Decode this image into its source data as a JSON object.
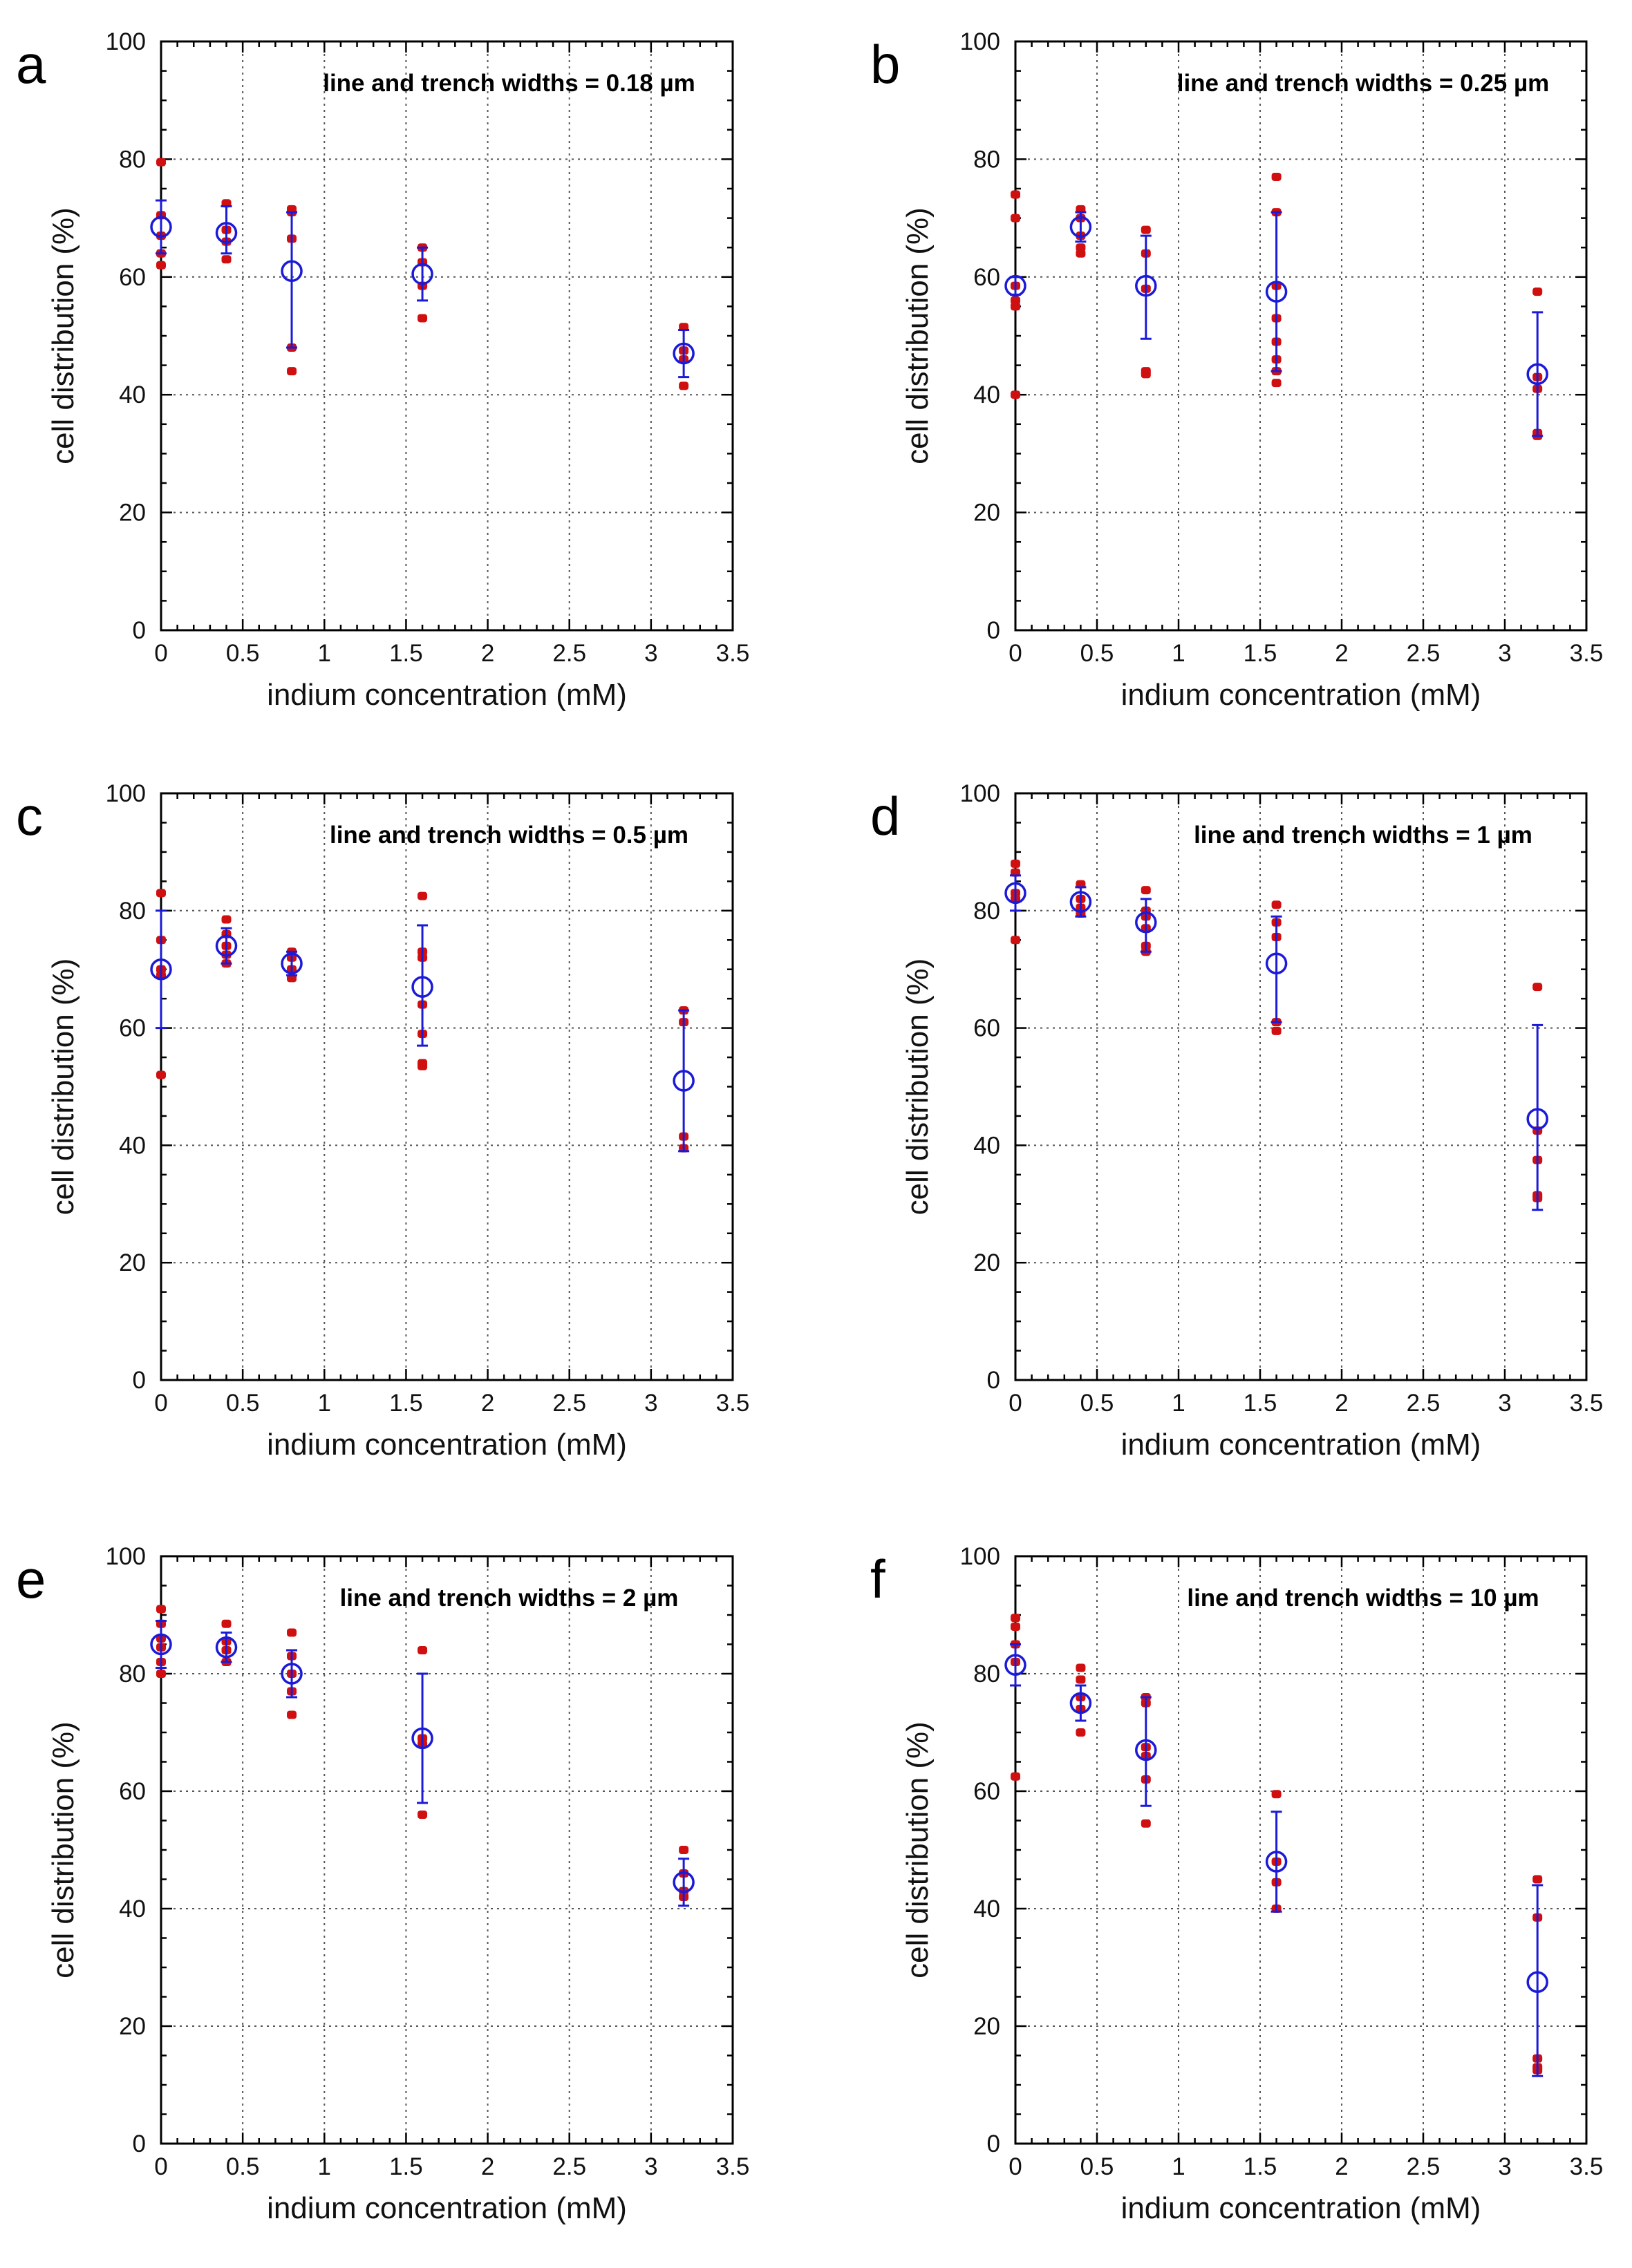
{
  "chart_data": [
    {
      "type": "scatter",
      "panel": "a",
      "annotation": "line and trench widths = 0.18 µm",
      "xlabel": "indium concentration (mM)",
      "ylabel": "cell distribution (%)",
      "xlim": [
        0,
        3.5
      ],
      "ylim": [
        0,
        100
      ],
      "xticks": [
        "0",
        "0.5",
        "1",
        "1.5",
        "2",
        "2.5",
        "3",
        "3.5"
      ],
      "yticks": [
        "0",
        "20",
        "40",
        "60",
        "80",
        "100"
      ],
      "grid": true,
      "series": [
        {
          "kind": "raw",
          "color": "#d01010",
          "points": [
            [
              0,
              79.5
            ],
            [
              0,
              70.5
            ],
            [
              0,
              67
            ],
            [
              0,
              64
            ],
            [
              0,
              62
            ],
            [
              0.4,
              72.5
            ],
            [
              0.4,
              68
            ],
            [
              0.4,
              66
            ],
            [
              0.4,
              63
            ],
            [
              0.8,
              71.5
            ],
            [
              0.8,
              71
            ],
            [
              0.8,
              66.5
            ],
            [
              0.8,
              48
            ],
            [
              0.8,
              44
            ],
            [
              1.6,
              65
            ],
            [
              1.6,
              62.5
            ],
            [
              1.6,
              58.5
            ],
            [
              1.6,
              53
            ],
            [
              3.2,
              51.5
            ],
            [
              3.2,
              47.5
            ],
            [
              3.2,
              46
            ],
            [
              3.2,
              41.5
            ]
          ]
        },
        {
          "kind": "mean",
          "color": "#1a1ad8",
          "points": [
            [
              0,
              68.5
            ],
            [
              0.4,
              67.5
            ],
            [
              0.8,
              61
            ],
            [
              1.6,
              60.5
            ],
            [
              3.2,
              47
            ]
          ],
          "error": [
            [
              64,
              73
            ],
            [
              64,
              72
            ],
            [
              48,
              71
            ],
            [
              56,
              65
            ],
            [
              43,
              51
            ]
          ]
        }
      ]
    },
    {
      "type": "scatter",
      "panel": "b",
      "annotation": "line and trench widths = 0.25 µm",
      "xlabel": "indium concentration (mM)",
      "ylabel": "cell distribution (%)",
      "xlim": [
        0,
        3.5
      ],
      "ylim": [
        0,
        100
      ],
      "xticks": [
        "0",
        "0.5",
        "1",
        "1.5",
        "2",
        "2.5",
        "3",
        "3.5"
      ],
      "yticks": [
        "0",
        "20",
        "40",
        "60",
        "80",
        "100"
      ],
      "grid": true,
      "series": [
        {
          "kind": "raw",
          "color": "#d01010",
          "points": [
            [
              0,
              74
            ],
            [
              0,
              70
            ],
            [
              0,
              58.5
            ],
            [
              0,
              56
            ],
            [
              0,
              55
            ],
            [
              0,
              40
            ],
            [
              0.4,
              71.5
            ],
            [
              0.4,
              70
            ],
            [
              0.4,
              67
            ],
            [
              0.4,
              65
            ],
            [
              0.4,
              64
            ],
            [
              0.8,
              68
            ],
            [
              0.8,
              64
            ],
            [
              0.8,
              58
            ],
            [
              0.8,
              44
            ],
            [
              0.8,
              43.5
            ],
            [
              1.6,
              77
            ],
            [
              1.6,
              71
            ],
            [
              1.6,
              58.5
            ],
            [
              1.6,
              53
            ],
            [
              1.6,
              49
            ],
            [
              1.6,
              46
            ],
            [
              1.6,
              44
            ],
            [
              1.6,
              42
            ],
            [
              3.2,
              57.5
            ],
            [
              3.2,
              43
            ],
            [
              3.2,
              41
            ],
            [
              3.2,
              33.5
            ],
            [
              3.2,
              33
            ]
          ]
        },
        {
          "kind": "mean",
          "color": "#1a1ad8",
          "points": [
            [
              0,
              58.5
            ],
            [
              0.4,
              68.5
            ],
            [
              0.8,
              58.5
            ],
            [
              1.6,
              57.5
            ],
            [
              3.2,
              43.5
            ]
          ],
          "error": [
            [
              57,
              60
            ],
            [
              66,
              71
            ],
            [
              49.5,
              67
            ],
            [
              44,
              71
            ],
            [
              33,
              54
            ]
          ]
        }
      ]
    },
    {
      "type": "scatter",
      "panel": "c",
      "annotation": "line and trench widths = 0.5 µm",
      "xlabel": "indium concentration (mM)",
      "ylabel": "cell distribution (%)",
      "xlim": [
        0,
        3.5
      ],
      "ylim": [
        0,
        100
      ],
      "xticks": [
        "0",
        "0.5",
        "1",
        "1.5",
        "2",
        "2.5",
        "3",
        "3.5"
      ],
      "yticks": [
        "0",
        "20",
        "40",
        "60",
        "80",
        "100"
      ],
      "grid": true,
      "series": [
        {
          "kind": "raw",
          "color": "#d01010",
          "points": [
            [
              0,
              83
            ],
            [
              0,
              75
            ],
            [
              0,
              70
            ],
            [
              0,
              69
            ],
            [
              0,
              52
            ],
            [
              0.4,
              78.5
            ],
            [
              0.4,
              76
            ],
            [
              0.4,
              74
            ],
            [
              0.4,
              72.5
            ],
            [
              0.4,
              71
            ],
            [
              0.8,
              73
            ],
            [
              0.8,
              72
            ],
            [
              0.8,
              70
            ],
            [
              0.8,
              68.5
            ],
            [
              1.6,
              82.5
            ],
            [
              1.6,
              73
            ],
            [
              1.6,
              72
            ],
            [
              1.6,
              64
            ],
            [
              1.6,
              59
            ],
            [
              1.6,
              54
            ],
            [
              1.6,
              53.5
            ],
            [
              3.2,
              63
            ],
            [
              3.2,
              61
            ],
            [
              3.2,
              41.5
            ],
            [
              3.2,
              39.5
            ]
          ]
        },
        {
          "kind": "mean",
          "color": "#1a1ad8",
          "points": [
            [
              0,
              70
            ],
            [
              0.4,
              74
            ],
            [
              0.8,
              71
            ],
            [
              1.6,
              67
            ],
            [
              3.2,
              51
            ]
          ],
          "error": [
            [
              60,
              80
            ],
            [
              71,
              77
            ],
            [
              69,
              73
            ],
            [
              57,
              77.5
            ],
            [
              39,
              63
            ]
          ]
        }
      ]
    },
    {
      "type": "scatter",
      "panel": "d",
      "annotation": "line and trench widths = 1 µm",
      "xlabel": "indium concentration (mM)",
      "ylabel": "cell distribution (%)",
      "xlim": [
        0,
        3.5
      ],
      "ylim": [
        0,
        100
      ],
      "xticks": [
        "0",
        "0.5",
        "1",
        "1.5",
        "2",
        "2.5",
        "3",
        "3.5"
      ],
      "yticks": [
        "0",
        "20",
        "40",
        "60",
        "80",
        "100"
      ],
      "grid": true,
      "series": [
        {
          "kind": "raw",
          "color": "#d01010",
          "points": [
            [
              0,
              88
            ],
            [
              0,
              86.5
            ],
            [
              0,
              83
            ],
            [
              0,
              82
            ],
            [
              0,
              75
            ],
            [
              0.4,
              84.5
            ],
            [
              0.4,
              82
            ],
            [
              0.4,
              80.5
            ],
            [
              0.4,
              79.5
            ],
            [
              0.8,
              83.5
            ],
            [
              0.8,
              80
            ],
            [
              0.8,
              79
            ],
            [
              0.8,
              77
            ],
            [
              0.8,
              74
            ],
            [
              0.8,
              73
            ],
            [
              1.6,
              81
            ],
            [
              1.6,
              78
            ],
            [
              1.6,
              75.5
            ],
            [
              1.6,
              61
            ],
            [
              1.6,
              59.5
            ],
            [
              3.2,
              67
            ],
            [
              3.2,
              42.5
            ],
            [
              3.2,
              37.5
            ],
            [
              3.2,
              31.5
            ],
            [
              3.2,
              31
            ]
          ]
        },
        {
          "kind": "mean",
          "color": "#1a1ad8",
          "points": [
            [
              0,
              83
            ],
            [
              0.4,
              81.5
            ],
            [
              0.8,
              78
            ],
            [
              1.6,
              71
            ],
            [
              3.2,
              44.5
            ]
          ],
          "error": [
            [
              80,
              86
            ],
            [
              79,
              84
            ],
            [
              73,
              82
            ],
            [
              61,
              79
            ],
            [
              29,
              60.5
            ]
          ]
        }
      ]
    },
    {
      "type": "scatter",
      "panel": "e",
      "annotation": "line and trench widths = 2 µm",
      "xlabel": "indium concentration (mM)",
      "ylabel": "cell distribution (%)",
      "xlim": [
        0,
        3.5
      ],
      "ylim": [
        0,
        100
      ],
      "xticks": [
        "0",
        "0.5",
        "1",
        "1.5",
        "2",
        "2.5",
        "3",
        "3.5"
      ],
      "yticks": [
        "0",
        "20",
        "40",
        "60",
        "80",
        "100"
      ],
      "grid": true,
      "series": [
        {
          "kind": "raw",
          "color": "#d01010",
          "points": [
            [
              0,
              91
            ],
            [
              0,
              88.5
            ],
            [
              0,
              86
            ],
            [
              0,
              84.5
            ],
            [
              0,
              82
            ],
            [
              0,
              80
            ],
            [
              0.4,
              88.5
            ],
            [
              0.4,
              85.5
            ],
            [
              0.4,
              84
            ],
            [
              0.4,
              82
            ],
            [
              0.8,
              87
            ],
            [
              0.8,
              83
            ],
            [
              0.8,
              80
            ],
            [
              0.8,
              77
            ],
            [
              0.8,
              73
            ],
            [
              1.6,
              84
            ],
            [
              1.6,
              69
            ],
            [
              1.6,
              68
            ],
            [
              1.6,
              56
            ],
            [
              3.2,
              50
            ],
            [
              3.2,
              46
            ],
            [
              3.2,
              43
            ],
            [
              3.2,
              42
            ]
          ]
        },
        {
          "kind": "mean",
          "color": "#1a1ad8",
          "points": [
            [
              0,
              85
            ],
            [
              0.4,
              84.5
            ],
            [
              0.8,
              80
            ],
            [
              1.6,
              69
            ],
            [
              3.2,
              44.5
            ]
          ],
          "error": [
            [
              81,
              89
            ],
            [
              82,
              87
            ],
            [
              76,
              84
            ],
            [
              58,
              80
            ],
            [
              40.5,
              48.5
            ]
          ]
        }
      ]
    },
    {
      "type": "scatter",
      "panel": "f",
      "annotation": "line and trench widths = 10 µm",
      "xlabel": "indium concentration (mM)",
      "ylabel": "cell distribution (%)",
      "xlim": [
        0,
        3.5
      ],
      "ylim": [
        0,
        100
      ],
      "xticks": [
        "0",
        "0.5",
        "1",
        "1.5",
        "2",
        "2.5",
        "3",
        "3.5"
      ],
      "yticks": [
        "0",
        "20",
        "40",
        "60",
        "80",
        "100"
      ],
      "grid": true,
      "series": [
        {
          "kind": "raw",
          "color": "#d01010",
          "points": [
            [
              0,
              89.5
            ],
            [
              0,
              88
            ],
            [
              0,
              85
            ],
            [
              0,
              82
            ],
            [
              0,
              62.5
            ],
            [
              0.4,
              81
            ],
            [
              0.4,
              79
            ],
            [
              0.4,
              76
            ],
            [
              0.4,
              74
            ],
            [
              0.4,
              70
            ],
            [
              0.8,
              76
            ],
            [
              0.8,
              75
            ],
            [
              0.8,
              67.5
            ],
            [
              0.8,
              66
            ],
            [
              0.8,
              62
            ],
            [
              0.8,
              54.5
            ],
            [
              1.6,
              59.5
            ],
            [
              1.6,
              48
            ],
            [
              1.6,
              44.5
            ],
            [
              1.6,
              40
            ],
            [
              3.2,
              45
            ],
            [
              3.2,
              38.5
            ],
            [
              3.2,
              14.5
            ],
            [
              3.2,
              13
            ],
            [
              3.2,
              12.5
            ]
          ]
        },
        {
          "kind": "mean",
          "color": "#1a1ad8",
          "points": [
            [
              0,
              81.5
            ],
            [
              0.4,
              75
            ],
            [
              0.8,
              67
            ],
            [
              1.6,
              48
            ],
            [
              3.2,
              27.5
            ]
          ],
          "error": [
            [
              78,
              85
            ],
            [
              72,
              78
            ],
            [
              57.5,
              76
            ],
            [
              39.5,
              56.5
            ],
            [
              11.5,
              44
            ]
          ]
        }
      ]
    }
  ]
}
